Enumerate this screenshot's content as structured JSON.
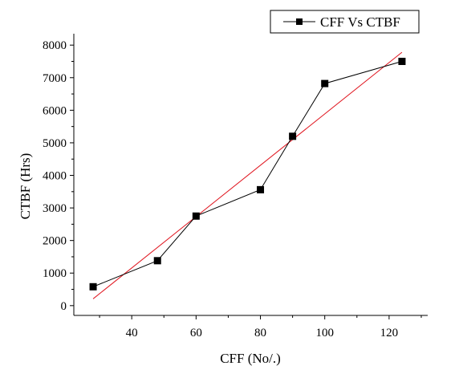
{
  "chart_data": {
    "type": "line",
    "title": "",
    "xlabel": "CFF (No/.)",
    "ylabel": "CTBF (Hrs)",
    "xlim": [
      22,
      132
    ],
    "ylim": [
      -300,
      8350
    ],
    "xticks": [
      40,
      60,
      80,
      100,
      120
    ],
    "yticks": [
      0,
      1000,
      2000,
      3000,
      4000,
      5000,
      6000,
      7000,
      8000
    ],
    "grid": false,
    "legend_position": "top-right",
    "series": [
      {
        "name": "CFF Vs CTBF",
        "color": "#000000",
        "marker": "square",
        "x": [
          28,
          48,
          60,
          80,
          90,
          100,
          124
        ],
        "y": [
          580,
          1380,
          2750,
          3560,
          5200,
          6820,
          7500
        ]
      }
    ],
    "fit_line": {
      "color": "#e0141e",
      "x": [
        28,
        124
      ],
      "y": [
        210,
        7780
      ]
    }
  }
}
